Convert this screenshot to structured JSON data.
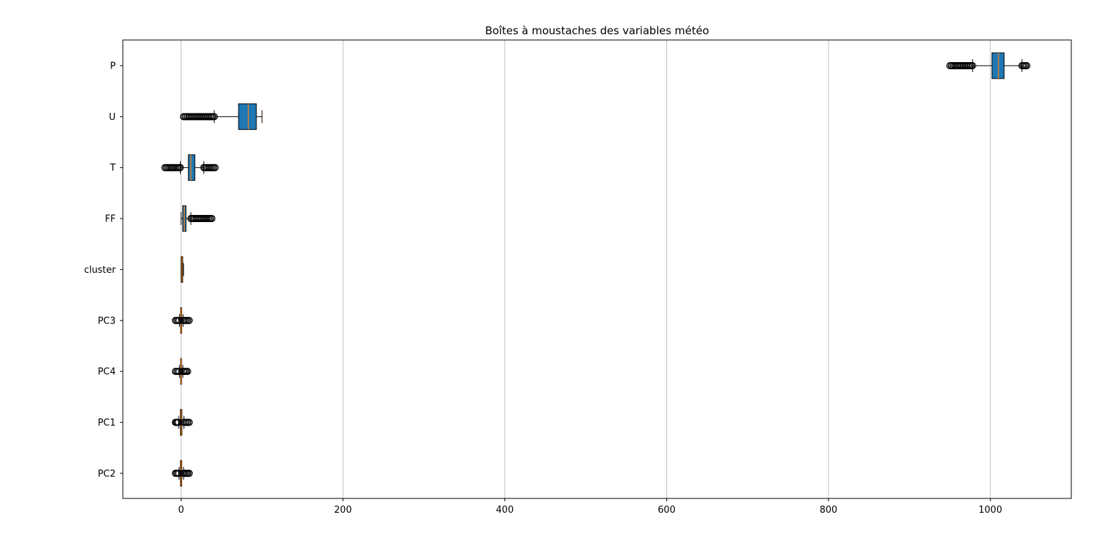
{
  "chart_data": {
    "type": "boxplot",
    "orientation": "horizontal",
    "title": "Boîtes à moustaches des variables météo",
    "xlabel": "",
    "ylabel": "",
    "xlim": [
      -72,
      1100
    ],
    "xticks": [
      0,
      200,
      400,
      600,
      800,
      1000
    ],
    "grid": {
      "x": true,
      "y": false
    },
    "box_color": "#1f77b4",
    "median_color": "#ff7f0e",
    "categories": [
      "P",
      "U",
      "T",
      "FF",
      "cluster",
      "PC3",
      "PC4",
      "PC1",
      "PC2"
    ],
    "boxes": [
      {
        "name": "P",
        "whisker_low": 978,
        "q1": 1002,
        "median": 1010,
        "q3": 1017,
        "whisker_high": 1039,
        "outliers_low_range": [
          950,
          978
        ],
        "outliers_high_range": [
          1039,
          1045
        ]
      },
      {
        "name": "U",
        "whisker_low": 41,
        "q1": 71,
        "median": 83,
        "q3": 93,
        "whisker_high": 100,
        "outliers_low_range": [
          3,
          41
        ],
        "outliers_high_range": null
      },
      {
        "name": "T",
        "whisker_low": -1,
        "q1": 9,
        "median": 12,
        "q3": 17,
        "whisker_high": 28,
        "outliers_low_range": [
          -20,
          -1
        ],
        "outliers_high_range": [
          28,
          42
        ]
      },
      {
        "name": "FF",
        "whisker_low": 0,
        "q1": 2,
        "median": 4,
        "q3": 6,
        "whisker_high": 12,
        "outliers_low_range": null,
        "outliers_high_range": [
          12,
          38
        ]
      },
      {
        "name": "cluster",
        "whisker_low": 0,
        "q1": 0,
        "median": 1,
        "q3": 2,
        "whisker_high": 3,
        "outliers_low_range": null,
        "outliers_high_range": null
      },
      {
        "name": "PC3",
        "whisker_low": -2,
        "q1": -0.6,
        "median": 0,
        "q3": 0.7,
        "whisker_high": 2.4,
        "outliers_low_range": [
          -7,
          -2
        ],
        "outliers_high_range": [
          2.4,
          10
        ]
      },
      {
        "name": "PC4",
        "whisker_low": -2,
        "q1": -0.6,
        "median": 0,
        "q3": 0.6,
        "whisker_high": 2.2,
        "outliers_low_range": [
          -7,
          -2
        ],
        "outliers_high_range": [
          2.2,
          8
        ]
      },
      {
        "name": "PC1",
        "whisker_low": -3,
        "q1": -0.9,
        "median": 0,
        "q3": 1,
        "whisker_high": 3.5,
        "outliers_low_range": [
          -7,
          -3
        ],
        "outliers_high_range": [
          3.5,
          10
        ]
      },
      {
        "name": "PC2",
        "whisker_low": -2.5,
        "q1": -0.8,
        "median": 0,
        "q3": 0.8,
        "whisker_high": 3,
        "outliers_low_range": [
          -7,
          -2.5
        ],
        "outliers_high_range": [
          3,
          10
        ]
      }
    ]
  }
}
